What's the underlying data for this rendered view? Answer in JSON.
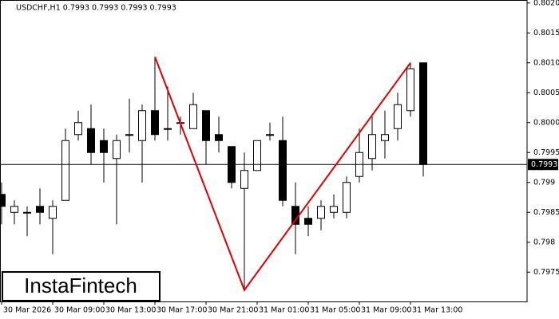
{
  "chart_data": {
    "type": "candlestick",
    "title": "USDCHF,H1  0.7993 0.7993 0.7993 0.7993",
    "watermark": "InstaFintech",
    "categories": [
      "30 Mar 2026",
      null,
      null,
      null,
      "30 Mar 09:00",
      null,
      null,
      null,
      "30 Mar 13:00",
      null,
      null,
      null,
      "30 Mar 17:00",
      null,
      null,
      null,
      "30 Mar 21:00",
      null,
      null,
      null,
      "31 Mar 01:00",
      null,
      null,
      null,
      "31 Mar 05:00",
      null,
      null,
      null,
      "31 Mar 09:00",
      null,
      null,
      null,
      "31 Mar 13:00",
      null
    ],
    "open": [
      0.7988,
      0.7985,
      0.7985,
      0.7986,
      0.7984,
      0.7987,
      0.7998,
      0.7999,
      0.7997,
      0.7994,
      0.7998,
      0.7997,
      0.8002,
      0.7999,
      0.8,
      0.7999,
      0.8002,
      0.7998,
      0.7996,
      0.7989,
      0.7992,
      0.7998,
      0.7997,
      0.7986,
      0.7984,
      0.7984,
      0.7985,
      0.7985,
      0.7991,
      0.7994,
      0.7997,
      0.7999,
      0.8002,
      0.801
    ],
    "high": [
      0.799,
      0.7987,
      0.7986,
      0.7989,
      0.7987,
      0.7999,
      0.8002,
      0.8003,
      0.7999,
      0.7998,
      0.8004,
      0.8003,
      0.8011,
      0.8006,
      0.8001,
      0.8005,
      0.8002,
      0.8001,
      0.7996,
      0.7995,
      0.7997,
      0.8,
      0.8001,
      0.799,
      0.7986,
      0.7987,
      0.7988,
      0.7991,
      0.7999,
      0.8001,
      0.8002,
      0.8005,
      0.801,
      0.801
    ],
    "low": [
      0.7983,
      0.7983,
      0.7981,
      0.7983,
      0.7978,
      0.7987,
      0.7997,
      0.7993,
      0.799,
      0.7983,
      0.7995,
      0.799,
      0.7997,
      0.7997,
      0.7998,
      0.7999,
      0.7993,
      0.7995,
      0.7989,
      0.7972,
      0.7992,
      0.7997,
      0.7986,
      0.7978,
      0.7981,
      0.7982,
      0.7984,
      0.7984,
      0.799,
      0.7992,
      0.7994,
      0.7997,
      0.8001,
      0.7991
    ],
    "close": [
      0.7986,
      0.7986,
      0.7985,
      0.7985,
      0.7986,
      0.7997,
      0.8,
      0.7995,
      0.7995,
      0.7997,
      0.7998,
      0.8002,
      0.7998,
      0.7999,
      0.8,
      0.8003,
      0.7997,
      0.7997,
      0.799,
      0.7992,
      0.7997,
      0.7998,
      0.7987,
      0.7983,
      0.7983,
      0.7986,
      0.7986,
      0.799,
      0.7995,
      0.7998,
      0.7998,
      0.8003,
      0.8009,
      0.7993
    ],
    "up_color": "#ffffff",
    "down_color": "#000000",
    "last_price": 0.7993,
    "pattern": {
      "color": "#e00000",
      "x": [
        12,
        19,
        32
      ],
      "y": [
        0.8011,
        0.7972,
        0.801
      ]
    },
    "ylim": [
      0.79701,
      0.80205
    ],
    "yticks": [
      0.7975,
      0.798,
      0.7985,
      0.799,
      0.7995,
      {
        "value": 0.8,
        "label": "0.8000"
      },
      0.8005,
      {
        "value": 0.801,
        "label": "0.8010"
      },
      0.8015,
      {
        "value": 0.802,
        "label": "0.8020"
      }
    ]
  }
}
